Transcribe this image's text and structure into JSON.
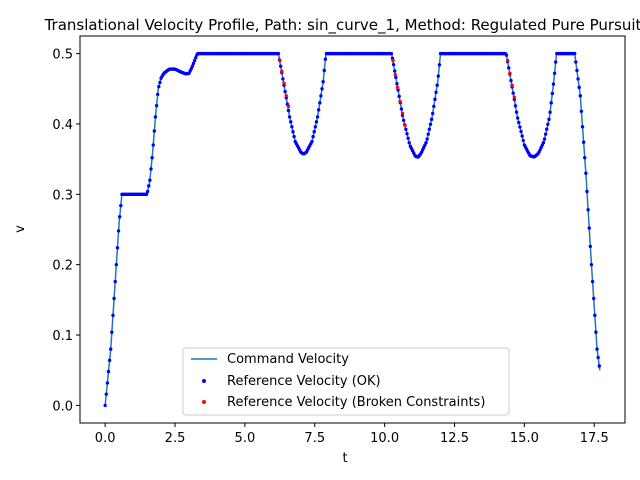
{
  "chart_data": {
    "type": "line",
    "title": "Translational Velocity Profile, Path: sin_curve_1, Method: Regulated Pure Pursuit",
    "xlabel": "t",
    "ylabel": "v",
    "xlim": [
      -0.9,
      18.6
    ],
    "ylim": [
      -0.025,
      0.525
    ],
    "xticks": [
      0.0,
      2.5,
      5.0,
      7.5,
      10.0,
      12.5,
      15.0,
      17.5
    ],
    "xtick_labels": [
      "0.0",
      "2.5",
      "5.0",
      "7.5",
      "10.0",
      "12.5",
      "15.0",
      "17.5"
    ],
    "yticks": [
      0.0,
      0.1,
      0.2,
      0.3,
      0.4,
      0.5
    ],
    "ytick_labels": [
      "0.0",
      "0.1",
      "0.2",
      "0.3",
      "0.4",
      "0.5"
    ],
    "grid": false,
    "legend_position": "bottom-center",
    "series": [
      {
        "name": "Command Velocity",
        "kind": "line",
        "color": "#1f77b4",
        "points": [
          [
            0.0,
            0.0
          ],
          [
            0.1,
            0.04
          ],
          [
            0.2,
            0.08
          ],
          [
            0.3,
            0.14
          ],
          [
            0.4,
            0.2
          ],
          [
            0.5,
            0.26
          ],
          [
            0.6,
            0.3
          ],
          [
            0.8,
            0.3
          ],
          [
            1.0,
            0.3
          ],
          [
            1.2,
            0.3
          ],
          [
            1.5,
            0.3
          ],
          [
            1.6,
            0.32
          ],
          [
            1.7,
            0.36
          ],
          [
            1.8,
            0.41
          ],
          [
            1.9,
            0.45
          ],
          [
            2.0,
            0.465
          ],
          [
            2.1,
            0.472
          ],
          [
            2.3,
            0.478
          ],
          [
            2.5,
            0.478
          ],
          [
            2.7,
            0.474
          ],
          [
            2.9,
            0.471
          ],
          [
            3.0,
            0.472
          ],
          [
            3.1,
            0.48
          ],
          [
            3.2,
            0.49
          ],
          [
            3.3,
            0.5
          ],
          [
            4.0,
            0.5
          ],
          [
            5.0,
            0.5
          ],
          [
            6.2,
            0.5
          ],
          [
            6.4,
            0.455
          ],
          [
            6.6,
            0.41
          ],
          [
            6.8,
            0.375
          ],
          [
            7.0,
            0.36
          ],
          [
            7.1,
            0.357
          ],
          [
            7.2,
            0.36
          ],
          [
            7.4,
            0.375
          ],
          [
            7.6,
            0.41
          ],
          [
            7.8,
            0.46
          ],
          [
            7.9,
            0.5
          ],
          [
            9.0,
            0.5
          ],
          [
            10.25,
            0.5
          ],
          [
            10.45,
            0.455
          ],
          [
            10.65,
            0.41
          ],
          [
            10.9,
            0.37
          ],
          [
            11.1,
            0.354
          ],
          [
            11.2,
            0.353
          ],
          [
            11.3,
            0.358
          ],
          [
            11.5,
            0.375
          ],
          [
            11.7,
            0.41
          ],
          [
            11.9,
            0.46
          ],
          [
            12.0,
            0.5
          ],
          [
            13.0,
            0.5
          ],
          [
            14.35,
            0.5
          ],
          [
            14.55,
            0.455
          ],
          [
            14.75,
            0.41
          ],
          [
            15.0,
            0.37
          ],
          [
            15.2,
            0.355
          ],
          [
            15.35,
            0.353
          ],
          [
            15.5,
            0.358
          ],
          [
            15.7,
            0.375
          ],
          [
            15.9,
            0.41
          ],
          [
            16.05,
            0.46
          ],
          [
            16.15,
            0.5
          ],
          [
            16.8,
            0.5
          ],
          [
            17.0,
            0.44
          ],
          [
            17.2,
            0.33
          ],
          [
            17.4,
            0.2
          ],
          [
            17.6,
            0.08
          ],
          [
            17.7,
            0.05
          ]
        ]
      },
      {
        "name": "Reference Velocity (OK)",
        "kind": "scatter",
        "color": "#0000ff"
      },
      {
        "name": "Reference Velocity (Broken Constraints)",
        "kind": "scatter",
        "color": "#ff0000",
        "points": [
          [
            6.25,
            0.49
          ],
          [
            6.32,
            0.475
          ],
          [
            6.4,
            0.458
          ],
          [
            6.48,
            0.44
          ],
          [
            6.56,
            0.425
          ],
          [
            10.3,
            0.49
          ],
          [
            10.38,
            0.47
          ],
          [
            10.46,
            0.452
          ],
          [
            10.55,
            0.432
          ],
          [
            10.64,
            0.415
          ],
          [
            10.73,
            0.398
          ],
          [
            14.4,
            0.49
          ],
          [
            14.48,
            0.472
          ],
          [
            14.56,
            0.455
          ],
          [
            14.64,
            0.438
          ]
        ]
      }
    ]
  }
}
